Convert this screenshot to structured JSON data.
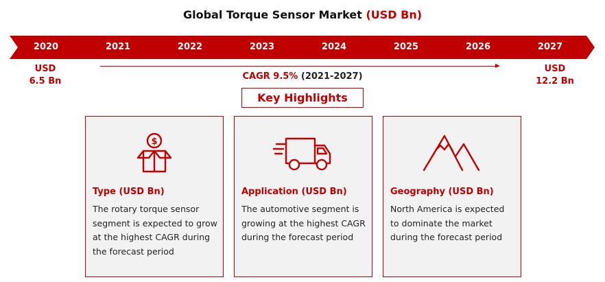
{
  "title": {
    "main": "Global Torque Sensor Market",
    "unit": "(USD Bn)"
  },
  "timeline": {
    "years": [
      "2020",
      "2021",
      "2022",
      "2023",
      "2024",
      "2025",
      "2026",
      "2027"
    ],
    "start": {
      "line1": "USD",
      "line2": "6.5 Bn"
    },
    "end": {
      "line1": "USD",
      "line2": "12.2 Bn"
    },
    "cagr": {
      "rate": "CAGR 9.5%",
      "period": "(2021-2027)"
    }
  },
  "key_highlights": "Key Highlights",
  "cards": [
    {
      "icon": "money-box-icon",
      "title": "Type (USD Bn)",
      "text": "The rotary torque sensor segment is expected to grow at the highest CAGR during the forecast period"
    },
    {
      "icon": "delivery-truck-icon",
      "title": "Application (USD Bn)",
      "text": "The automotive segment is growing at the highest CAGR during the forecast period"
    },
    {
      "icon": "mountain-icon",
      "title": "Geography (USD Bn)",
      "text": "North America is expected to dominate the market during the forecast period"
    }
  ],
  "colors": {
    "accent": "#c00000",
    "card_bg": "#f2f2f2"
  }
}
